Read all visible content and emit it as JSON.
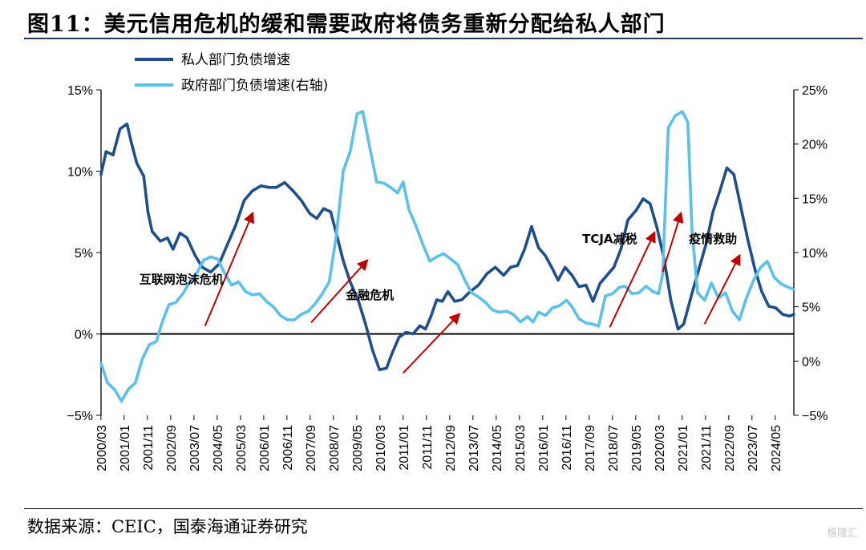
{
  "title": "图11：美元信用危机的缓和需要政府将债务重新分配给私人部门",
  "source": "数据来源：CEIC，国泰海通证券研究",
  "watermark": "格隆汇",
  "chart_data": {
    "type": "line",
    "left_ylim": [
      -5,
      15
    ],
    "right_ylim": [
      -5,
      25
    ],
    "left_ticks": [
      "15%",
      "10%",
      "5%",
      "0%",
      "−5%"
    ],
    "right_ticks": [
      "25%",
      "20%",
      "15%",
      "10%",
      "5%",
      "0%",
      "−5%"
    ],
    "x_range": [
      2000.17,
      2025.0
    ],
    "x_ticks": [
      "2000/03",
      "2001/01",
      "2001/11",
      "2002/09",
      "2003/07",
      "2004/05",
      "2005/03",
      "2006/01",
      "2006/11",
      "2007/09",
      "2008/07",
      "2009/05",
      "2010/03",
      "2011/01",
      "2011/11",
      "2012/09",
      "2013/07",
      "2014/05",
      "2015/03",
      "2016/01",
      "2016/11",
      "2017/09",
      "2018/07",
      "2019/05",
      "2020/03",
      "2021/01",
      "2021/11",
      "2022/09",
      "2023/07",
      "2024/05"
    ],
    "legend_position": "top-left",
    "series": [
      {
        "name": "私人部门负债增速",
        "axis": "left",
        "color": "#1f4e8c",
        "points": [
          [
            2000.17,
            9.8
          ],
          [
            2000.35,
            11.2
          ],
          [
            2000.6,
            11.0
          ],
          [
            2000.85,
            12.6
          ],
          [
            2001.1,
            12.9
          ],
          [
            2001.25,
            11.8
          ],
          [
            2001.45,
            10.5
          ],
          [
            2001.7,
            9.7
          ],
          [
            2001.85,
            7.5
          ],
          [
            2002.0,
            6.3
          ],
          [
            2002.3,
            5.7
          ],
          [
            2002.55,
            5.9
          ],
          [
            2002.75,
            5.2
          ],
          [
            2003.0,
            6.2
          ],
          [
            2003.25,
            5.9
          ],
          [
            2003.55,
            4.8
          ],
          [
            2003.8,
            4.1
          ],
          [
            2004.1,
            3.8
          ],
          [
            2004.4,
            4.3
          ],
          [
            2004.7,
            5.5
          ],
          [
            2005.0,
            6.7
          ],
          [
            2005.3,
            8.2
          ],
          [
            2005.6,
            8.8
          ],
          [
            2005.9,
            9.1
          ],
          [
            2006.2,
            9.0
          ],
          [
            2006.45,
            9.0
          ],
          [
            2006.75,
            9.3
          ],
          [
            2007.05,
            8.8
          ],
          [
            2007.35,
            8.2
          ],
          [
            2007.65,
            7.4
          ],
          [
            2007.9,
            7.1
          ],
          [
            2008.15,
            7.7
          ],
          [
            2008.4,
            7.5
          ],
          [
            2008.6,
            6.2
          ],
          [
            2008.85,
            4.5
          ],
          [
            2009.1,
            3.2
          ],
          [
            2009.4,
            2.0
          ],
          [
            2009.65,
            0.6
          ],
          [
            2009.9,
            -1.0
          ],
          [
            2010.15,
            -2.2
          ],
          [
            2010.4,
            -2.1
          ],
          [
            2010.6,
            -1.2
          ],
          [
            2010.85,
            -0.2
          ],
          [
            2011.1,
            0.1
          ],
          [
            2011.35,
            0.0
          ],
          [
            2011.6,
            0.5
          ],
          [
            2011.8,
            0.3
          ],
          [
            2012.0,
            1.1
          ],
          [
            2012.2,
            2.1
          ],
          [
            2012.4,
            2.0
          ],
          [
            2012.6,
            2.6
          ],
          [
            2012.85,
            2.0
          ],
          [
            2013.1,
            2.1
          ],
          [
            2013.4,
            2.6
          ],
          [
            2013.7,
            3.0
          ],
          [
            2014.0,
            3.7
          ],
          [
            2014.3,
            4.1
          ],
          [
            2014.6,
            3.6
          ],
          [
            2014.85,
            4.1
          ],
          [
            2015.1,
            4.2
          ],
          [
            2015.35,
            5.2
          ],
          [
            2015.6,
            6.6
          ],
          [
            2015.85,
            5.3
          ],
          [
            2016.1,
            4.8
          ],
          [
            2016.35,
            4.0
          ],
          [
            2016.55,
            3.3
          ],
          [
            2016.8,
            4.1
          ],
          [
            2017.05,
            3.6
          ],
          [
            2017.3,
            2.9
          ],
          [
            2017.55,
            3.0
          ],
          [
            2017.8,
            2.0
          ],
          [
            2018.05,
            3.1
          ],
          [
            2018.3,
            3.6
          ],
          [
            2018.55,
            4.1
          ],
          [
            2018.8,
            5.2
          ],
          [
            2019.05,
            7.0
          ],
          [
            2019.35,
            7.6
          ],
          [
            2019.6,
            8.3
          ],
          [
            2019.85,
            8.0
          ],
          [
            2020.1,
            6.5
          ],
          [
            2020.35,
            4.6
          ],
          [
            2020.6,
            2.0
          ],
          [
            2020.85,
            0.3
          ],
          [
            2021.05,
            0.6
          ],
          [
            2021.35,
            2.5
          ],
          [
            2021.6,
            4.0
          ],
          [
            2021.85,
            5.5
          ],
          [
            2022.1,
            7.5
          ],
          [
            2022.35,
            8.8
          ],
          [
            2022.6,
            10.2
          ],
          [
            2022.85,
            9.8
          ],
          [
            2023.1,
            7.8
          ],
          [
            2023.35,
            5.8
          ],
          [
            2023.6,
            4.0
          ],
          [
            2023.85,
            2.6
          ],
          [
            2024.1,
            1.7
          ],
          [
            2024.35,
            1.6
          ],
          [
            2024.6,
            1.2
          ],
          [
            2024.85,
            1.1
          ],
          [
            2025.0,
            1.2
          ]
        ]
      },
      {
        "name": "政府部门负债增速(右轴)",
        "axis": "right",
        "color": "#5bc0eb",
        "points": [
          [
            2000.17,
            -0.2
          ],
          [
            2000.4,
            -2.0
          ],
          [
            2000.65,
            -2.6
          ],
          [
            2000.9,
            -3.7
          ],
          [
            2001.15,
            -2.6
          ],
          [
            2001.4,
            -2.0
          ],
          [
            2001.65,
            0.2
          ],
          [
            2001.9,
            1.5
          ],
          [
            2002.15,
            1.8
          ],
          [
            2002.35,
            3.5
          ],
          [
            2002.6,
            5.2
          ],
          [
            2002.85,
            5.4
          ],
          [
            2003.1,
            6.2
          ],
          [
            2003.35,
            7.3
          ],
          [
            2003.6,
            8.1
          ],
          [
            2003.85,
            9.3
          ],
          [
            2004.1,
            9.6
          ],
          [
            2004.35,
            9.4
          ],
          [
            2004.6,
            8.1
          ],
          [
            2004.85,
            7.0
          ],
          [
            2005.1,
            7.3
          ],
          [
            2005.35,
            6.4
          ],
          [
            2005.6,
            6.1
          ],
          [
            2005.85,
            6.2
          ],
          [
            2006.1,
            5.5
          ],
          [
            2006.35,
            5.0
          ],
          [
            2006.6,
            4.2
          ],
          [
            2006.85,
            3.8
          ],
          [
            2007.1,
            3.8
          ],
          [
            2007.35,
            4.3
          ],
          [
            2007.6,
            4.6
          ],
          [
            2007.85,
            5.3
          ],
          [
            2008.1,
            6.2
          ],
          [
            2008.35,
            7.3
          ],
          [
            2008.6,
            11.5
          ],
          [
            2008.85,
            17.5
          ],
          [
            2009.1,
            19.3
          ],
          [
            2009.35,
            22.8
          ],
          [
            2009.55,
            23.0
          ],
          [
            2009.8,
            19.7
          ],
          [
            2010.05,
            16.5
          ],
          [
            2010.3,
            16.4
          ],
          [
            2010.55,
            16.0
          ],
          [
            2010.8,
            15.5
          ],
          [
            2011.0,
            16.5
          ],
          [
            2011.2,
            14.0
          ],
          [
            2011.45,
            12.5
          ],
          [
            2011.7,
            10.8
          ],
          [
            2011.95,
            9.2
          ],
          [
            2012.2,
            9.6
          ],
          [
            2012.45,
            9.9
          ],
          [
            2012.7,
            9.4
          ],
          [
            2012.95,
            8.9
          ],
          [
            2013.2,
            7.5
          ],
          [
            2013.45,
            6.3
          ],
          [
            2013.7,
            5.9
          ],
          [
            2013.95,
            5.4
          ],
          [
            2014.2,
            4.7
          ],
          [
            2014.45,
            4.5
          ],
          [
            2014.7,
            4.6
          ],
          [
            2014.95,
            4.3
          ],
          [
            2015.2,
            3.6
          ],
          [
            2015.45,
            4.1
          ],
          [
            2015.65,
            3.6
          ],
          [
            2015.85,
            4.5
          ],
          [
            2016.1,
            4.2
          ],
          [
            2016.35,
            4.9
          ],
          [
            2016.6,
            5.1
          ],
          [
            2016.85,
            5.6
          ],
          [
            2017.05,
            5.0
          ],
          [
            2017.3,
            3.9
          ],
          [
            2017.55,
            3.5
          ],
          [
            2017.8,
            3.4
          ],
          [
            2018.0,
            3.2
          ],
          [
            2018.25,
            6.0
          ],
          [
            2018.5,
            6.2
          ],
          [
            2018.75,
            6.8
          ],
          [
            2018.95,
            6.9
          ],
          [
            2019.2,
            6.2
          ],
          [
            2019.45,
            6.3
          ],
          [
            2019.7,
            6.9
          ],
          [
            2019.95,
            6.4
          ],
          [
            2020.15,
            6.2
          ],
          [
            2020.3,
            8.0
          ],
          [
            2020.5,
            21.5
          ],
          [
            2020.75,
            22.6
          ],
          [
            2021.0,
            23.0
          ],
          [
            2021.2,
            22.0
          ],
          [
            2021.35,
            12.0
          ],
          [
            2021.55,
            6.3
          ],
          [
            2021.8,
            5.6
          ],
          [
            2022.05,
            7.2
          ],
          [
            2022.3,
            5.8
          ],
          [
            2022.55,
            6.3
          ],
          [
            2022.8,
            4.6
          ],
          [
            2023.05,
            3.8
          ],
          [
            2023.3,
            5.8
          ],
          [
            2023.55,
            7.4
          ],
          [
            2023.8,
            8.6
          ],
          [
            2024.05,
            9.2
          ],
          [
            2024.3,
            7.7
          ],
          [
            2024.55,
            7.1
          ],
          [
            2024.8,
            6.8
          ],
          [
            2025.0,
            6.6
          ]
        ]
      }
    ],
    "annotations": [
      {
        "label": "互联网泡沫危机",
        "at": [
          2003.05,
          3.1
        ],
        "arrow_from": [
          2003.9,
          0.5
        ],
        "arrow_to": [
          2005.6,
          7.4
        ]
      },
      {
        "label": "金融危机",
        "at": [
          2009.8,
          2.15
        ],
        "arrow_from": [
          2007.7,
          0.7
        ],
        "arrow_to": [
          2009.7,
          4.5
        ]
      },
      {
        "label": "",
        "at": [
          0,
          0
        ],
        "arrow_from": [
          2011.0,
          -2.4
        ],
        "arrow_to": [
          2013.0,
          1.2
        ]
      },
      {
        "label": "TCJA减税",
        "at": [
          2018.4,
          5.6
        ],
        "arrow_from": [
          2018.4,
          0.4
        ],
        "arrow_to": [
          2020.0,
          6.2
        ]
      },
      {
        "label": "疫情救助",
        "at": [
          2022.1,
          5.6
        ],
        "arrow_from": [
          2020.3,
          3.8
        ],
        "arrow_to": [
          2020.95,
          7.4
        ]
      },
      {
        "label": "",
        "at": [
          0,
          0
        ],
        "arrow_from": [
          2021.8,
          0.6
        ],
        "arrow_to": [
          2023.05,
          4.8
        ]
      }
    ]
  }
}
